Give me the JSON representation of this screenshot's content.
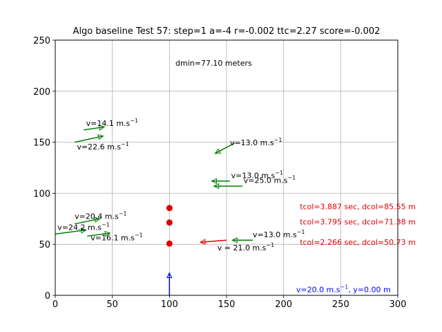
{
  "chart_data": {
    "type": "scatter",
    "title": "Algo baseline Test 57: step=1 a=-4 r=-0.002 ttc=2.27 score=-0.002",
    "xlabel": "",
    "ylabel": "",
    "xlim": [
      0,
      300
    ],
    "ylim": [
      0,
      250
    ],
    "xticks": [
      "0",
      "50",
      "100",
      "150",
      "200",
      "250",
      "300"
    ],
    "yticks": [
      "0",
      "50",
      "100",
      "150",
      "200",
      "250"
    ],
    "grid": true,
    "dmin_label": "dmin=77.10 meters",
    "ego": {
      "x": 100,
      "y": 0,
      "dx": 0,
      "dy": 22,
      "color": "#0000ff",
      "label": "v=20.0 m.s",
      "label_tail": ", y=0.00 m",
      "label_x": 211,
      "label_y": 3
    },
    "vehicles": [
      {
        "x": 25,
        "y": 162,
        "dx": 18,
        "dy": 3,
        "color": "#008000",
        "label": "v=14.1 m.s",
        "label_x": 27,
        "label_y": 166
      },
      {
        "x": 17,
        "y": 150,
        "dx": 25,
        "dy": 6,
        "color": "#008000",
        "label": "v=22.6 m.s",
        "label_x": 19,
        "label_y": 143
      },
      {
        "x": 157,
        "y": 149,
        "dx": -17,
        "dy": -10,
        "color": "#008000",
        "label": "v=13.0 m.s",
        "label_x": 153,
        "label_y": 147
      },
      {
        "x": 153,
        "y": 112,
        "dx": -16,
        "dy": 0,
        "color": "#008000",
        "label": "v=13.0 m.s",
        "label_x": 154,
        "label_y": 115
      },
      {
        "x": 164,
        "y": 107,
        "dx": -25,
        "dy": 0,
        "color": "#008000",
        "label": "v=25.0 m.s",
        "label_x": 165,
        "label_y": 110
      },
      {
        "x": 17,
        "y": 70,
        "dx": 22,
        "dy": 5,
        "color": "#008000",
        "label": "v=20.4 m.s",
        "label_x": 17,
        "label_y": 75
      },
      {
        "x": 0,
        "y": 60,
        "dx": 27,
        "dy": 4,
        "color": "#008000",
        "label": "v=24.2 m.s",
        "label_x": 2,
        "label_y": 64
      },
      {
        "x": 28,
        "y": 58,
        "dx": 20,
        "dy": 3,
        "color": "#008000",
        "label": "v=16.1 m.s",
        "label_x": 31,
        "label_y": 54
      },
      {
        "x": 173,
        "y": 54,
        "dx": -18,
        "dy": 0,
        "color": "#008000",
        "label": "v=13.0 m.s",
        "label_x": 173,
        "label_y": 57
      },
      {
        "x": 150,
        "y": 54,
        "dx": -23,
        "dy": -2,
        "color": "#e00000",
        "label": "v = 21.0 m.s",
        "label_x": 142,
        "label_y": 44
      }
    ],
    "collision_points": [
      {
        "x": 100,
        "y": 85.5,
        "color": "#e00000"
      },
      {
        "x": 100,
        "y": 71.3,
        "color": "#e00000"
      },
      {
        "x": 100,
        "y": 50.7,
        "color": "#e00000"
      }
    ],
    "collision_labels": [
      {
        "text": "tcol=3.887 sec, dcol=85.55 m",
        "x": 210,
        "y": 87
      },
      {
        "text": "tcol=3.795 sec, dcol=71.38 m",
        "x": 210,
        "y": 72
      },
      {
        "text": "tcol=2.266 sec, dcol=50.73 m",
        "x": 210,
        "y": 52
      }
    ],
    "unit_exponent": "−1"
  }
}
